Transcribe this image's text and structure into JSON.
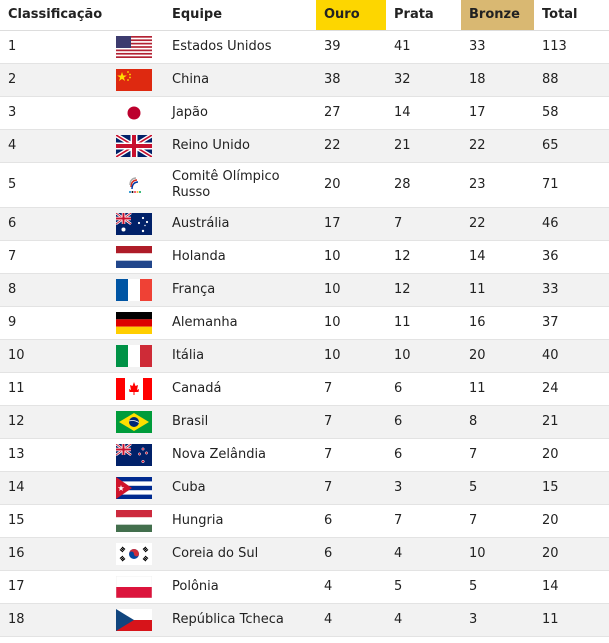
{
  "header": {
    "rank": "Classificação",
    "team": "Equipe",
    "gold": "Ouro",
    "silver": "Prata",
    "bronze": "Bronze",
    "total": "Total"
  },
  "colors": {
    "gold_header": "#fdd600",
    "bronze_header": "#d9b872",
    "row_alt": "#f2f2f2"
  },
  "rows": [
    {
      "rank": "1",
      "flag": "usa-flag-icon",
      "team": "Estados Unidos",
      "gold": "39",
      "silver": "41",
      "bronze": "33",
      "total": "113"
    },
    {
      "rank": "2",
      "flag": "china-flag-icon",
      "team": "China",
      "gold": "38",
      "silver": "32",
      "bronze": "18",
      "total": "88"
    },
    {
      "rank": "3",
      "flag": "japan-flag-icon",
      "team": "Japão",
      "gold": "27",
      "silver": "14",
      "bronze": "17",
      "total": "58"
    },
    {
      "rank": "4",
      "flag": "uk-flag-icon",
      "team": "Reino Unido",
      "gold": "22",
      "silver": "21",
      "bronze": "22",
      "total": "65"
    },
    {
      "rank": "5",
      "flag": "roc-emblem-icon",
      "team": "Comitê Olímpico Russo",
      "gold": "20",
      "silver": "28",
      "bronze": "23",
      "total": "71"
    },
    {
      "rank": "6",
      "flag": "australia-flag-icon",
      "team": "Austrália",
      "gold": "17",
      "silver": "7",
      "bronze": "22",
      "total": "46"
    },
    {
      "rank": "7",
      "flag": "netherlands-flag-icon",
      "team": "Holanda",
      "gold": "10",
      "silver": "12",
      "bronze": "14",
      "total": "36"
    },
    {
      "rank": "8",
      "flag": "france-flag-icon",
      "team": "França",
      "gold": "10",
      "silver": "12",
      "bronze": "11",
      "total": "33"
    },
    {
      "rank": "9",
      "flag": "germany-flag-icon",
      "team": "Alemanha",
      "gold": "10",
      "silver": "11",
      "bronze": "16",
      "total": "37"
    },
    {
      "rank": "10",
      "flag": "italy-flag-icon",
      "team": "Itália",
      "gold": "10",
      "silver": "10",
      "bronze": "20",
      "total": "40"
    },
    {
      "rank": "11",
      "flag": "canada-flag-icon",
      "team": "Canadá",
      "gold": "7",
      "silver": "6",
      "bronze": "11",
      "total": "24"
    },
    {
      "rank": "12",
      "flag": "brazil-flag-icon",
      "team": "Brasil",
      "gold": "7",
      "silver": "6",
      "bronze": "8",
      "total": "21"
    },
    {
      "rank": "13",
      "flag": "new-zealand-flag-icon",
      "team": "Nova Zelândia",
      "gold": "7",
      "silver": "6",
      "bronze": "7",
      "total": "20"
    },
    {
      "rank": "14",
      "flag": "cuba-flag-icon",
      "team": "Cuba",
      "gold": "7",
      "silver": "3",
      "bronze": "5",
      "total": "15"
    },
    {
      "rank": "15",
      "flag": "hungary-flag-icon",
      "team": "Hungria",
      "gold": "6",
      "silver": "7",
      "bronze": "7",
      "total": "20"
    },
    {
      "rank": "16",
      "flag": "south-korea-flag-icon",
      "team": "Coreia do Sul",
      "gold": "6",
      "silver": "4",
      "bronze": "10",
      "total": "20"
    },
    {
      "rank": "17",
      "flag": "poland-flag-icon",
      "team": "Polônia",
      "gold": "4",
      "silver": "5",
      "bronze": "5",
      "total": "14"
    },
    {
      "rank": "18",
      "flag": "czech-republic-flag-icon",
      "team": "República Tcheca",
      "gold": "4",
      "silver": "4",
      "bronze": "3",
      "total": "11"
    }
  ]
}
